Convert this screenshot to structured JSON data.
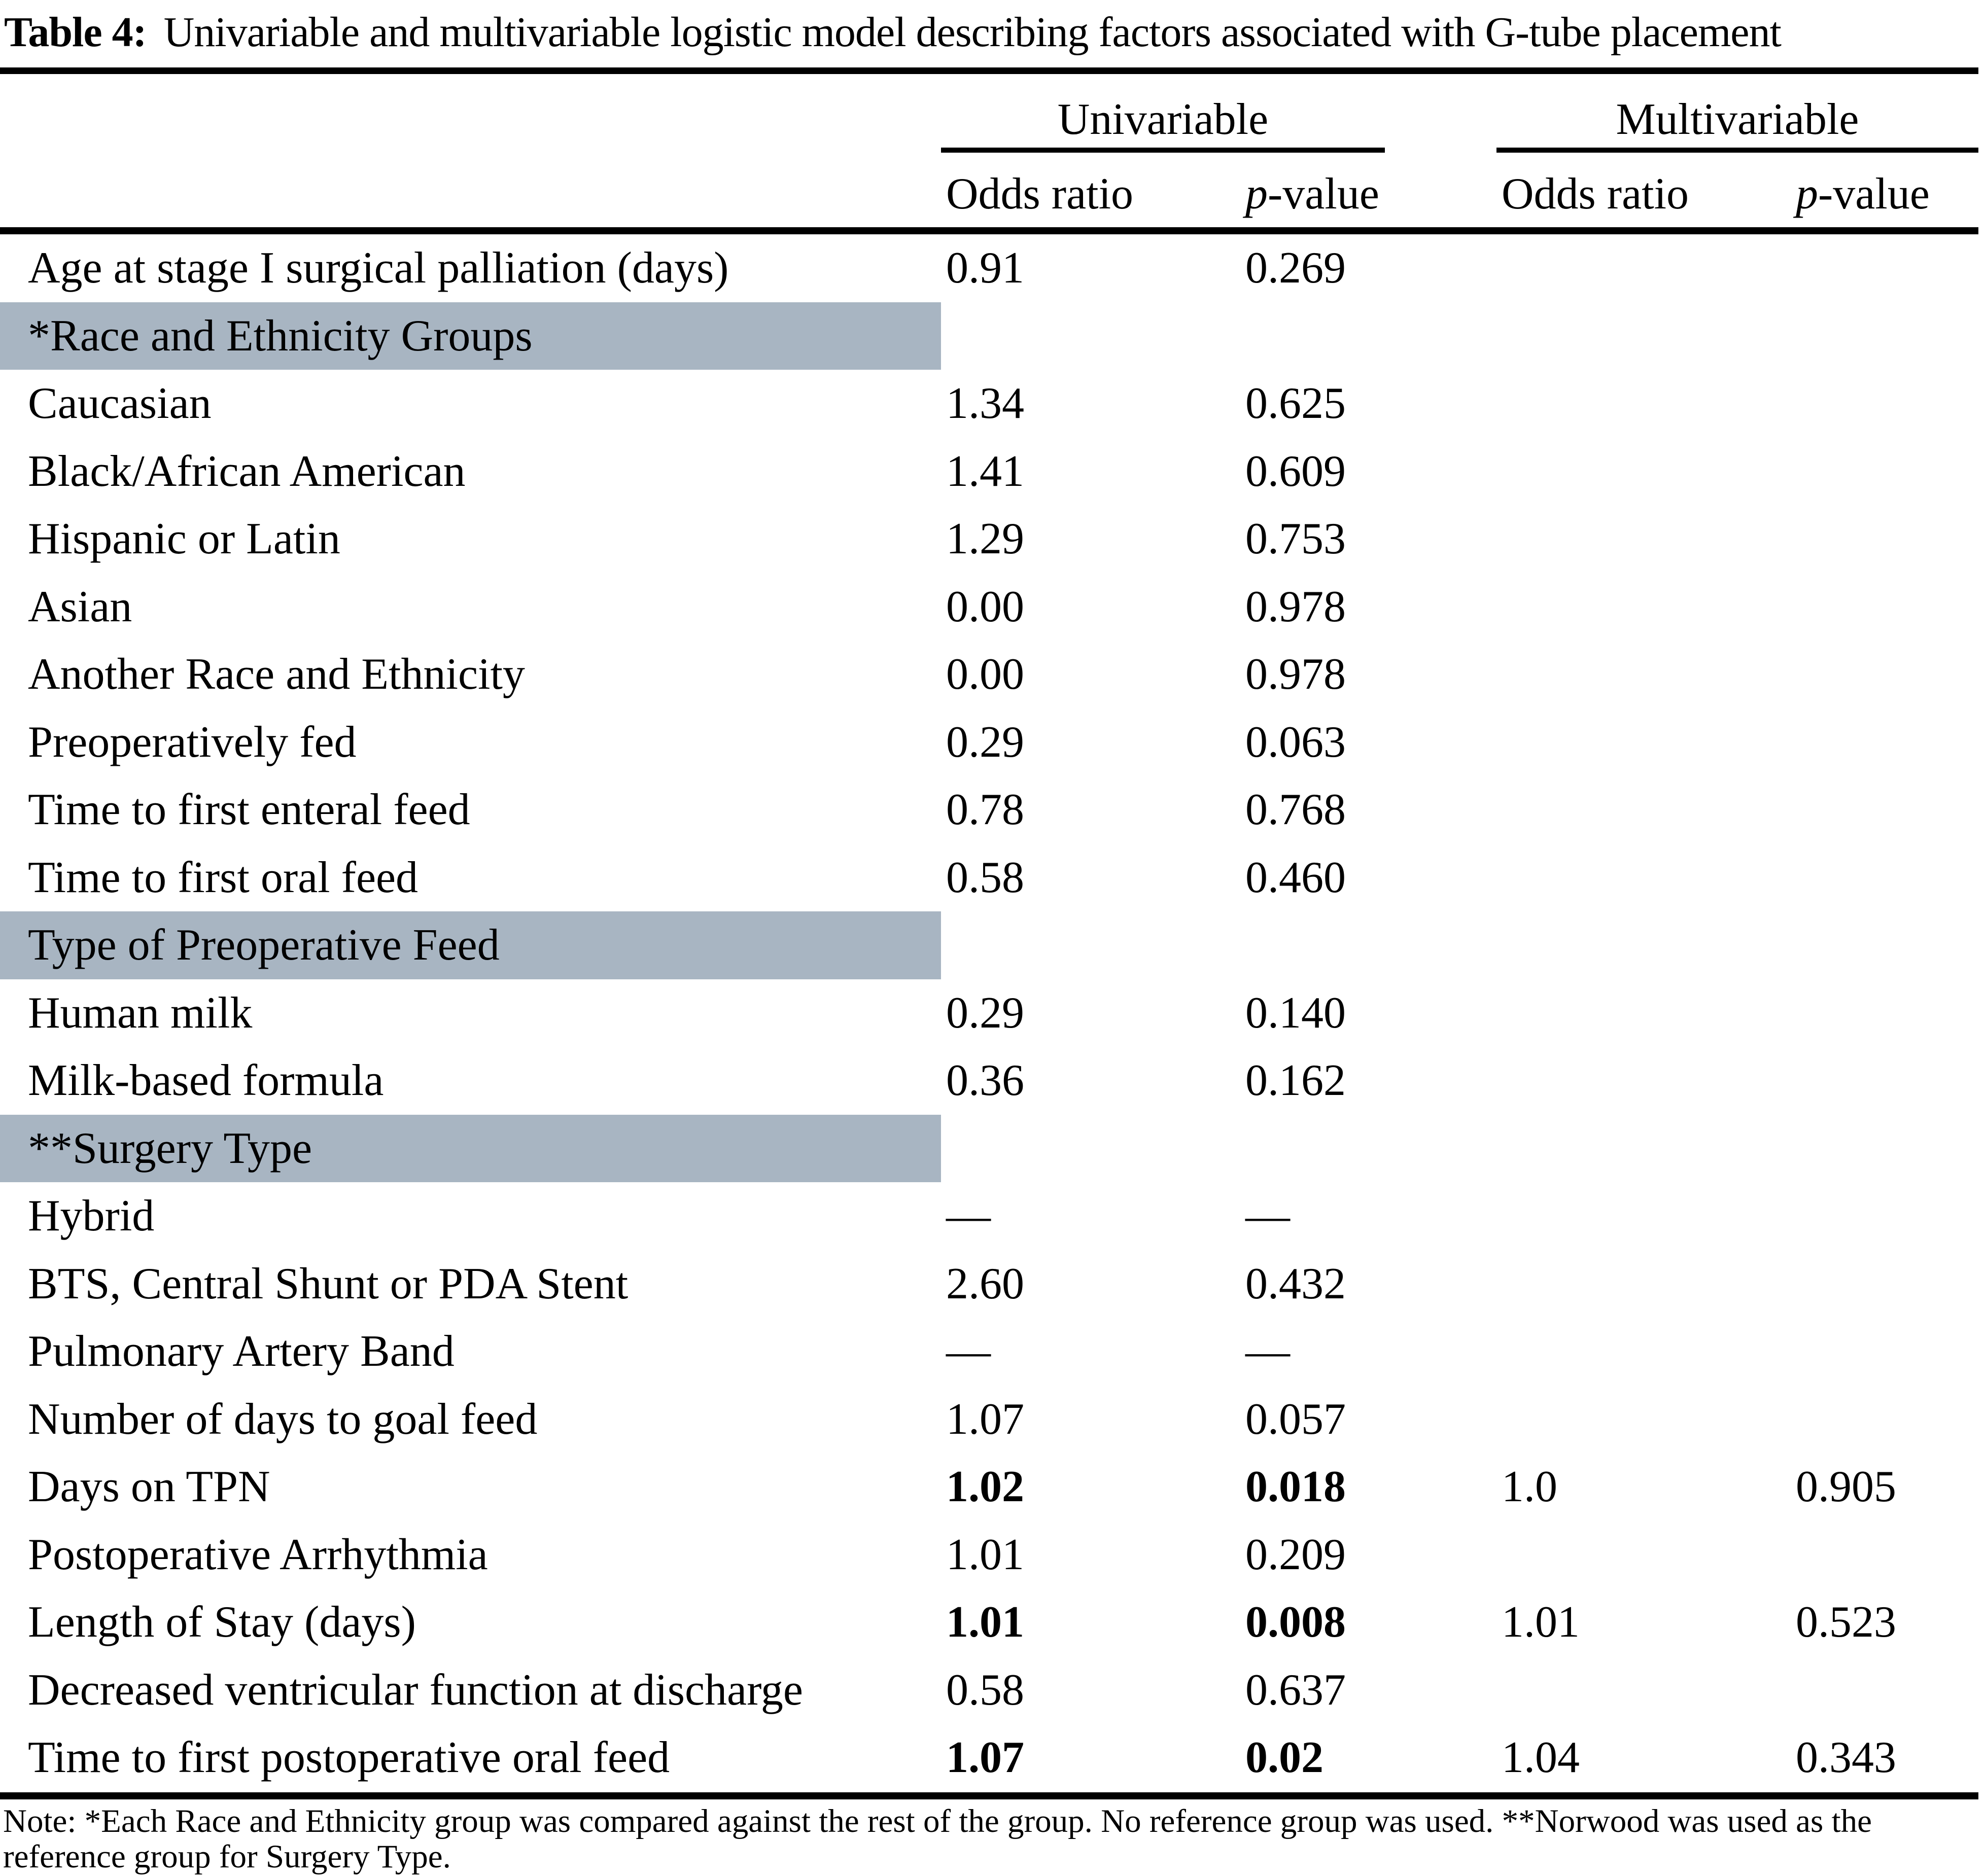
{
  "caption": {
    "label": "Table 4:",
    "text": "Univariable and multivariable logistic model describing factors associated with G-tube placement"
  },
  "group_headers": {
    "univariable": "Univariable",
    "multivariable": "Multivariable"
  },
  "column_headers": {
    "odds_ratio": "Odds ratio",
    "p_italic": "p",
    "p_rest": "-value"
  },
  "rows": [
    {
      "type": "data",
      "label": "Age at stage I surgical palliation (days)",
      "uni_or": "0.91",
      "uni_p": "0.269",
      "multi_or": "",
      "multi_p": "",
      "uni_bold": false
    },
    {
      "type": "section",
      "label": "*Race and Ethnicity Groups"
    },
    {
      "type": "data",
      "label": "Caucasian",
      "uni_or": "1.34",
      "uni_p": "0.625",
      "multi_or": "",
      "multi_p": "",
      "uni_bold": false
    },
    {
      "type": "data",
      "label": "Black/African American",
      "uni_or": "1.41",
      "uni_p": "0.609",
      "multi_or": "",
      "multi_p": "",
      "uni_bold": false
    },
    {
      "type": "data",
      "label": "Hispanic or Latin",
      "uni_or": "1.29",
      "uni_p": "0.753",
      "multi_or": "",
      "multi_p": "",
      "uni_bold": false
    },
    {
      "type": "data",
      "label": "Asian",
      "uni_or": "0.00",
      "uni_p": "0.978",
      "multi_or": "",
      "multi_p": "",
      "uni_bold": false
    },
    {
      "type": "data",
      "label": "Another Race and Ethnicity",
      "uni_or": "0.00",
      "uni_p": "0.978",
      "multi_or": "",
      "multi_p": "",
      "uni_bold": false
    },
    {
      "type": "data",
      "label": "Preoperatively fed",
      "uni_or": "0.29",
      "uni_p": "0.063",
      "multi_or": "",
      "multi_p": "",
      "uni_bold": false
    },
    {
      "type": "data",
      "label": "Time to first enteral feed",
      "uni_or": "0.78",
      "uni_p": "0.768",
      "multi_or": "",
      "multi_p": "",
      "uni_bold": false
    },
    {
      "type": "data",
      "label": "Time to first oral feed",
      "uni_or": "0.58",
      "uni_p": "0.460",
      "multi_or": "",
      "multi_p": "",
      "uni_bold": false
    },
    {
      "type": "section",
      "label": "Type of Preoperative Feed"
    },
    {
      "type": "data",
      "label": "Human milk",
      "uni_or": "0.29",
      "uni_p": "0.140",
      "multi_or": "",
      "multi_p": "",
      "uni_bold": false
    },
    {
      "type": "data",
      "label": "Milk-based formula",
      "uni_or": "0.36",
      "uni_p": "0.162",
      "multi_or": "",
      "multi_p": "",
      "uni_bold": false
    },
    {
      "type": "section",
      "label": "**Surgery Type"
    },
    {
      "type": "data",
      "label": "Hybrid",
      "uni_or": "—",
      "uni_p": "—",
      "multi_or": "",
      "multi_p": "",
      "uni_bold": false
    },
    {
      "type": "data",
      "label": "BTS, Central Shunt or PDA Stent",
      "uni_or": "2.60",
      "uni_p": "0.432",
      "multi_or": "",
      "multi_p": "",
      "uni_bold": false
    },
    {
      "type": "data",
      "label": "Pulmonary Artery Band",
      "uni_or": "—",
      "uni_p": "—",
      "multi_or": "",
      "multi_p": "",
      "uni_bold": false
    },
    {
      "type": "data",
      "label": "Number of days to goal feed",
      "uni_or": "1.07",
      "uni_p": "0.057",
      "multi_or": "",
      "multi_p": "",
      "uni_bold": false
    },
    {
      "type": "data",
      "label": "Days on TPN",
      "uni_or": "1.02",
      "uni_p": "0.018",
      "multi_or": "1.0",
      "multi_p": "0.905",
      "uni_bold": true
    },
    {
      "type": "data",
      "label": "Postoperative Arrhythmia",
      "uni_or": "1.01",
      "uni_p": "0.209",
      "multi_or": "",
      "multi_p": "",
      "uni_bold": false
    },
    {
      "type": "data",
      "label": "Length of Stay (days)",
      "uni_or": "1.01",
      "uni_p": "0.008",
      "multi_or": "1.01",
      "multi_p": "0.523",
      "uni_bold": true
    },
    {
      "type": "data",
      "label": "Decreased ventricular function at discharge",
      "uni_or": "0.58",
      "uni_p": "0.637",
      "multi_or": "",
      "multi_p": "",
      "uni_bold": false
    },
    {
      "type": "data",
      "label": "Time to first postoperative oral feed",
      "uni_or": "1.07",
      "uni_p": "0.02",
      "multi_or": "1.04",
      "multi_p": "0.343",
      "uni_bold": true
    }
  ],
  "note": "Note: *Each Race and Ethnicity group was compared against the rest of the group. No reference group was used. **Norwood was used as the reference group for Surgery Type.",
  "colors": {
    "section_band": "#a8b5c2",
    "text": "#000000",
    "background": "#ffffff"
  }
}
